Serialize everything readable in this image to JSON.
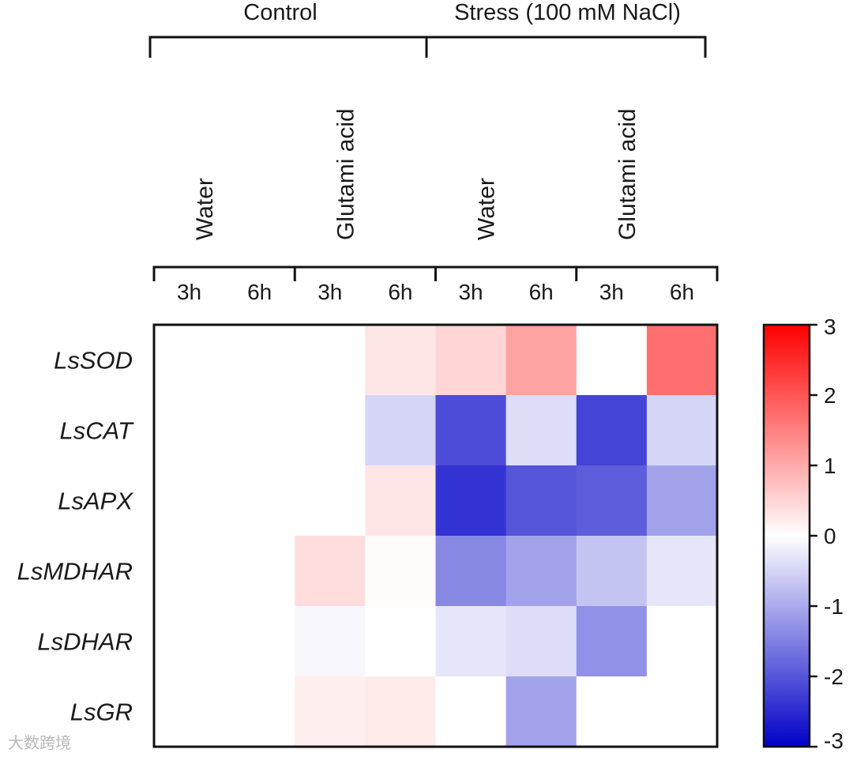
{
  "chart_data": {
    "type": "heatmap",
    "top_groups": [
      "Control",
      "Stress (100 mM NaCl)"
    ],
    "treatments": [
      "Water",
      "Glutami acid",
      "Water",
      "Glutami acid"
    ],
    "columns": [
      "3h",
      "6h",
      "3h",
      "6h",
      "3h",
      "6h",
      "3h",
      "6h"
    ],
    "rows": [
      "LsSOD",
      "LsCAT",
      "LsAPX",
      "LsMDHAR",
      "LsDHAR",
      "LsGR"
    ],
    "values": [
      [
        0,
        0,
        0,
        0.3,
        0.5,
        1.1,
        0,
        1.7
      ],
      [
        0,
        0,
        0,
        -0.5,
        -2.1,
        -0.4,
        -2.2,
        -0.5
      ],
      [
        0,
        0,
        0,
        0.3,
        -2.4,
        -2.0,
        -1.9,
        -1.1
      ],
      [
        0,
        0,
        0.4,
        0.05,
        -1.4,
        -1.1,
        -0.7,
        -0.3
      ],
      [
        0,
        0,
        -0.1,
        0,
        -0.3,
        -0.4,
        -1.3,
        0
      ],
      [
        0,
        0,
        0.2,
        0.25,
        0,
        -1.1,
        0,
        0
      ]
    ],
    "colorbar": {
      "min": -3,
      "max": 3,
      "ticks": [
        "3",
        "2",
        "1",
        "0",
        "-1",
        "-2",
        "-3"
      ],
      "colors": {
        "low": "#0000c8",
        "mid": "#ffffff",
        "high": "#ff0000"
      }
    }
  },
  "watermark": "大数跨境"
}
